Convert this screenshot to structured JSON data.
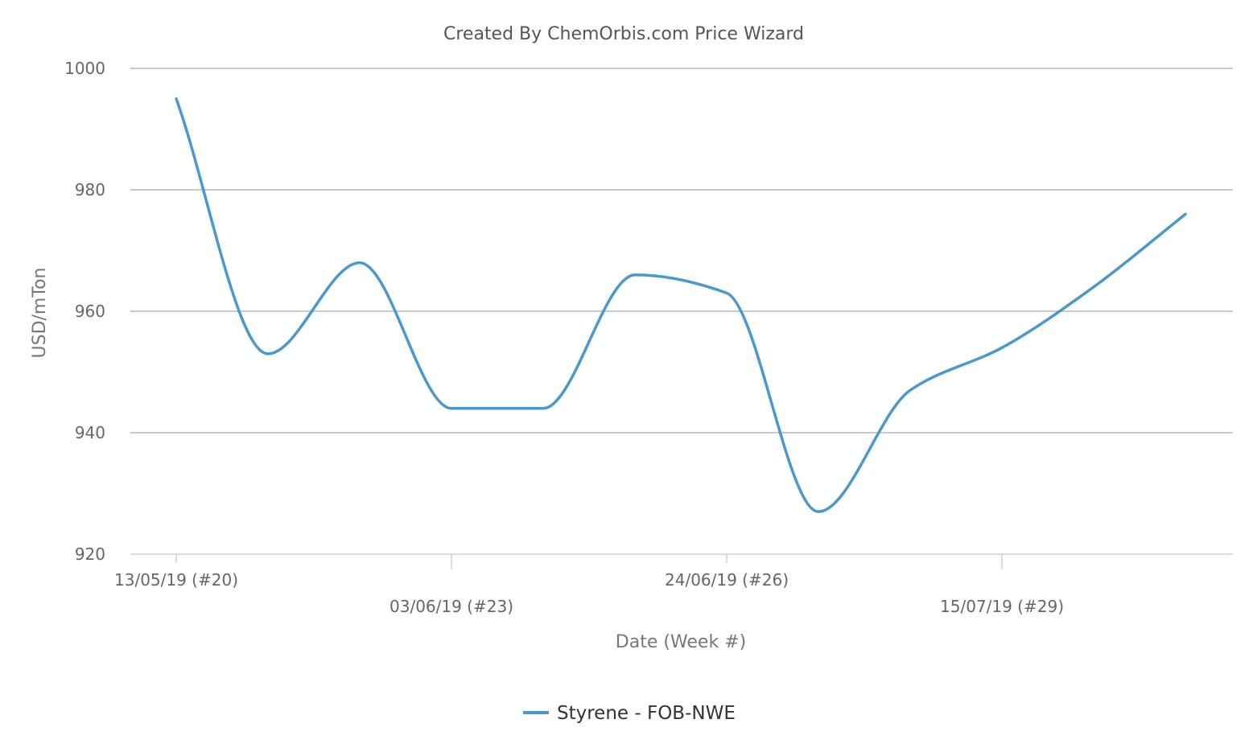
{
  "chart_data": {
    "type": "line",
    "title": "Created By ChemOrbis.com Price Wizard",
    "xlabel": "Date (Week #)",
    "ylabel": "USD/mTon",
    "ylim": [
      920,
      1000
    ],
    "yticks": [
      "1000",
      "980",
      "960",
      "940",
      "920"
    ],
    "ytick_values": [
      1000,
      980,
      960,
      940,
      920
    ],
    "x_tick_labels": [
      "13/05/19 (#20)",
      "03/06/19 (#23)",
      "24/06/19 (#26)",
      "15/07/19 (#29)"
    ],
    "x_tick_weeks": [
      20,
      23,
      26,
      29
    ],
    "x": [
      "13/05/19 (#20)",
      "(#21)",
      "(#22)",
      "03/06/19 (#23)",
      "(#24)",
      "(#25)",
      "24/06/19 (#26)",
      "(#27)",
      "(#28)",
      "15/07/19 (#29)",
      "(#30)",
      "(#31)"
    ],
    "x_weeks": [
      20,
      21,
      22,
      23,
      24,
      25,
      26,
      27,
      28,
      29,
      30,
      31
    ],
    "series": [
      {
        "name": "Styrene - FOB-NWE",
        "color": "#4a98cd",
        "values": [
          995,
          953,
          968,
          944,
          944,
          966,
          963,
          927,
          947,
          954,
          964,
          976
        ]
      }
    ],
    "grid": true,
    "legend": "bottom-center"
  }
}
